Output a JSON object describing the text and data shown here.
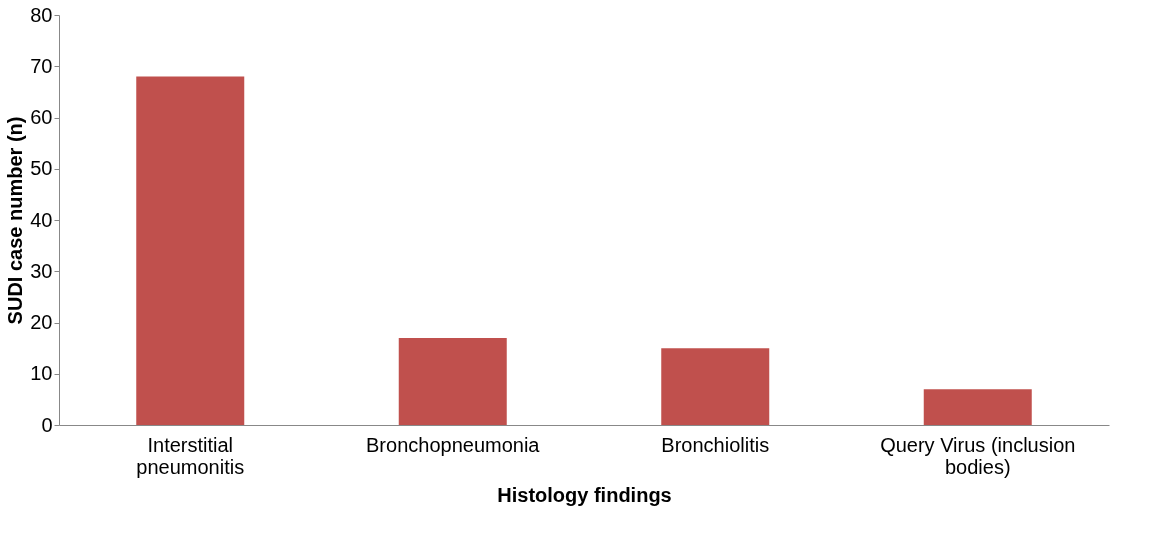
{
  "chart_data": {
    "type": "bar",
    "xlabel": "Histology findings",
    "ylabel": "SUDI case number (n)",
    "categories": [
      "Interstitial pneumonitis",
      "Bronchopneumonia",
      "Bronchiolitis",
      "Query Virus (inclusion bodies)"
    ],
    "values": [
      68,
      17,
      15,
      7
    ],
    "color": "#c0504d",
    "ylim": [
      0,
      80
    ],
    "yticks": [
      0,
      10,
      20,
      30,
      40,
      50,
      60,
      70,
      80
    ],
    "grid": false
  }
}
